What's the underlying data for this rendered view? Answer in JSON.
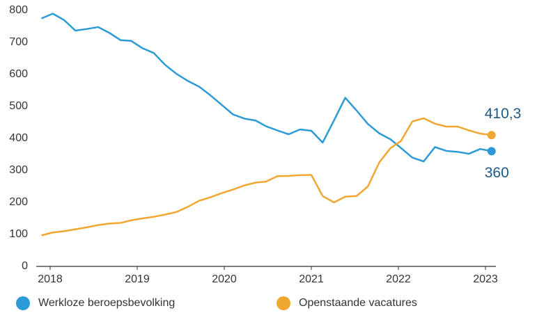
{
  "chart_data": {
    "type": "line",
    "x": [
      2017.9,
      2018.03,
      2018.16,
      2018.29,
      2018.42,
      2018.55,
      2018.68,
      2018.81,
      2018.93,
      2019.06,
      2019.19,
      2019.32,
      2019.45,
      2019.58,
      2019.71,
      2019.84,
      2019.97,
      2020.1,
      2020.23,
      2020.36,
      2020.48,
      2020.61,
      2020.74,
      2020.87,
      2021.0,
      2021.13,
      2021.26,
      2021.39,
      2021.52,
      2021.65,
      2021.78,
      2021.91,
      2022.03,
      2022.16,
      2022.29,
      2022.42,
      2022.55,
      2022.68,
      2022.81,
      2022.94,
      2023.07
    ],
    "series": [
      {
        "name": "Werkloze beroepsbevolking",
        "color": "#2b9ad6",
        "values": [
          775,
          790,
          770,
          737,
          742,
          748,
          730,
          707,
          705,
          682,
          667,
          630,
          602,
          580,
          562,
          535,
          505,
          475,
          462,
          456,
          438,
          425,
          413,
          428,
          424,
          387,
          456,
          527,
          487,
          445,
          416,
          397,
          370,
          340,
          328,
          373,
          361,
          358,
          352,
          367,
          360
        ],
        "value_labels": [
          null,
          null,
          null,
          null,
          null,
          null,
          null,
          null,
          null,
          null,
          null,
          null,
          null,
          null,
          null,
          null,
          null,
          null,
          null,
          null,
          null,
          null,
          null,
          null,
          null,
          null,
          null,
          null,
          null,
          null,
          null,
          null,
          null,
          null,
          null,
          null,
          null,
          null,
          null,
          null,
          "360"
        ]
      },
      {
        "name": "Openstaande vacatures",
        "color": "#f0a732",
        "values": [
          97,
          106,
          110,
          116,
          122,
          129,
          134,
          136,
          144,
          150,
          155,
          162,
          170,
          186,
          205,
          216,
          229,
          240,
          253,
          262,
          265,
          282,
          283,
          285,
          286,
          220,
          200,
          218,
          220,
          250,
          325,
          370,
          392,
          453,
          463,
          446,
          437,
          437,
          425,
          415,
          410.3
        ],
        "value_labels": [
          null,
          null,
          null,
          null,
          null,
          null,
          null,
          null,
          null,
          null,
          null,
          null,
          null,
          null,
          null,
          null,
          null,
          null,
          null,
          null,
          null,
          null,
          null,
          null,
          null,
          null,
          null,
          null,
          null,
          null,
          null,
          null,
          null,
          null,
          null,
          null,
          null,
          null,
          null,
          null,
          "410,3"
        ]
      }
    ],
    "xlim": [
      2017.84,
      2023.12
    ],
    "xticks": [
      2018,
      2019,
      2020,
      2021,
      2022,
      2023
    ],
    "ylim": [
      0,
      800
    ],
    "yticks": [
      0,
      100,
      200,
      300,
      400,
      500,
      600,
      700,
      800
    ]
  }
}
